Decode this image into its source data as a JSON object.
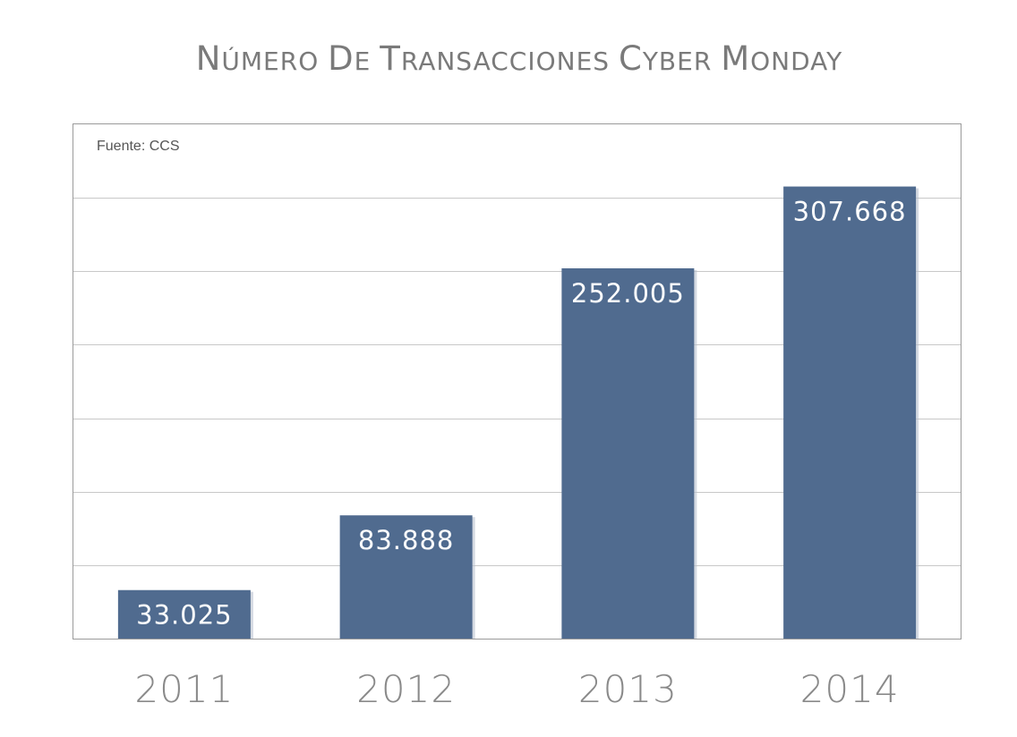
{
  "chart_data": {
    "type": "bar",
    "title": "Número de Transacciones Cyber Monday",
    "source": "Fuente: CCS",
    "categories": [
      "2011",
      "2012",
      "2013",
      "2014"
    ],
    "values": [
      33025,
      83888,
      252005,
      307668
    ],
    "value_labels": [
      "33.025",
      "83.888",
      "252.005",
      "307.668"
    ],
    "xlabel": "",
    "ylabel": "",
    "ylim": [
      0,
      350000
    ],
    "grid": true,
    "bar_color": "#506b8f",
    "grid_color": "#c8c8c8",
    "title_color": "#7a7a7a",
    "category_label_color": "#8a8a8a"
  }
}
